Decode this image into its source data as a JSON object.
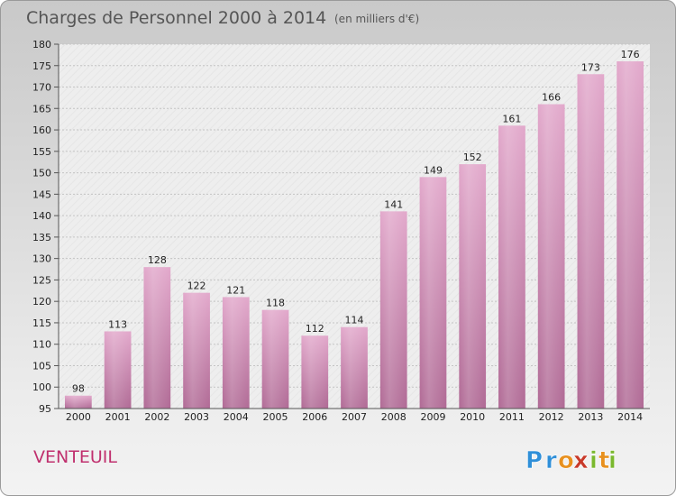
{
  "title": "Charges de Personnel 2000 à 2014",
  "subtitle": "(en milliers d'€)",
  "town": "VENTEUIL",
  "logo": {
    "letters": [
      "P",
      "r",
      "o",
      "x",
      "i",
      "t",
      "i"
    ],
    "colors": [
      "#2f8fd8",
      "#2f8fd8",
      "#e8901e",
      "#c83a2a",
      "#7ab82e",
      "#e8901e",
      "#7ab82e"
    ]
  },
  "chart_data": {
    "type": "bar",
    "categories": [
      "2000",
      "2001",
      "2002",
      "2003",
      "2004",
      "2005",
      "2006",
      "2007",
      "2008",
      "2009",
      "2010",
      "2011",
      "2012",
      "2013",
      "2014"
    ],
    "values": [
      98,
      113,
      128,
      122,
      121,
      118,
      112,
      114,
      141,
      149,
      152,
      161,
      166,
      173,
      176
    ],
    "ylim": [
      95,
      180
    ],
    "yticks": [
      95,
      100,
      105,
      110,
      115,
      120,
      125,
      130,
      135,
      140,
      145,
      150,
      155,
      160,
      165,
      170,
      175,
      180
    ],
    "grid": true,
    "bar_color": "#d98bb8"
  }
}
